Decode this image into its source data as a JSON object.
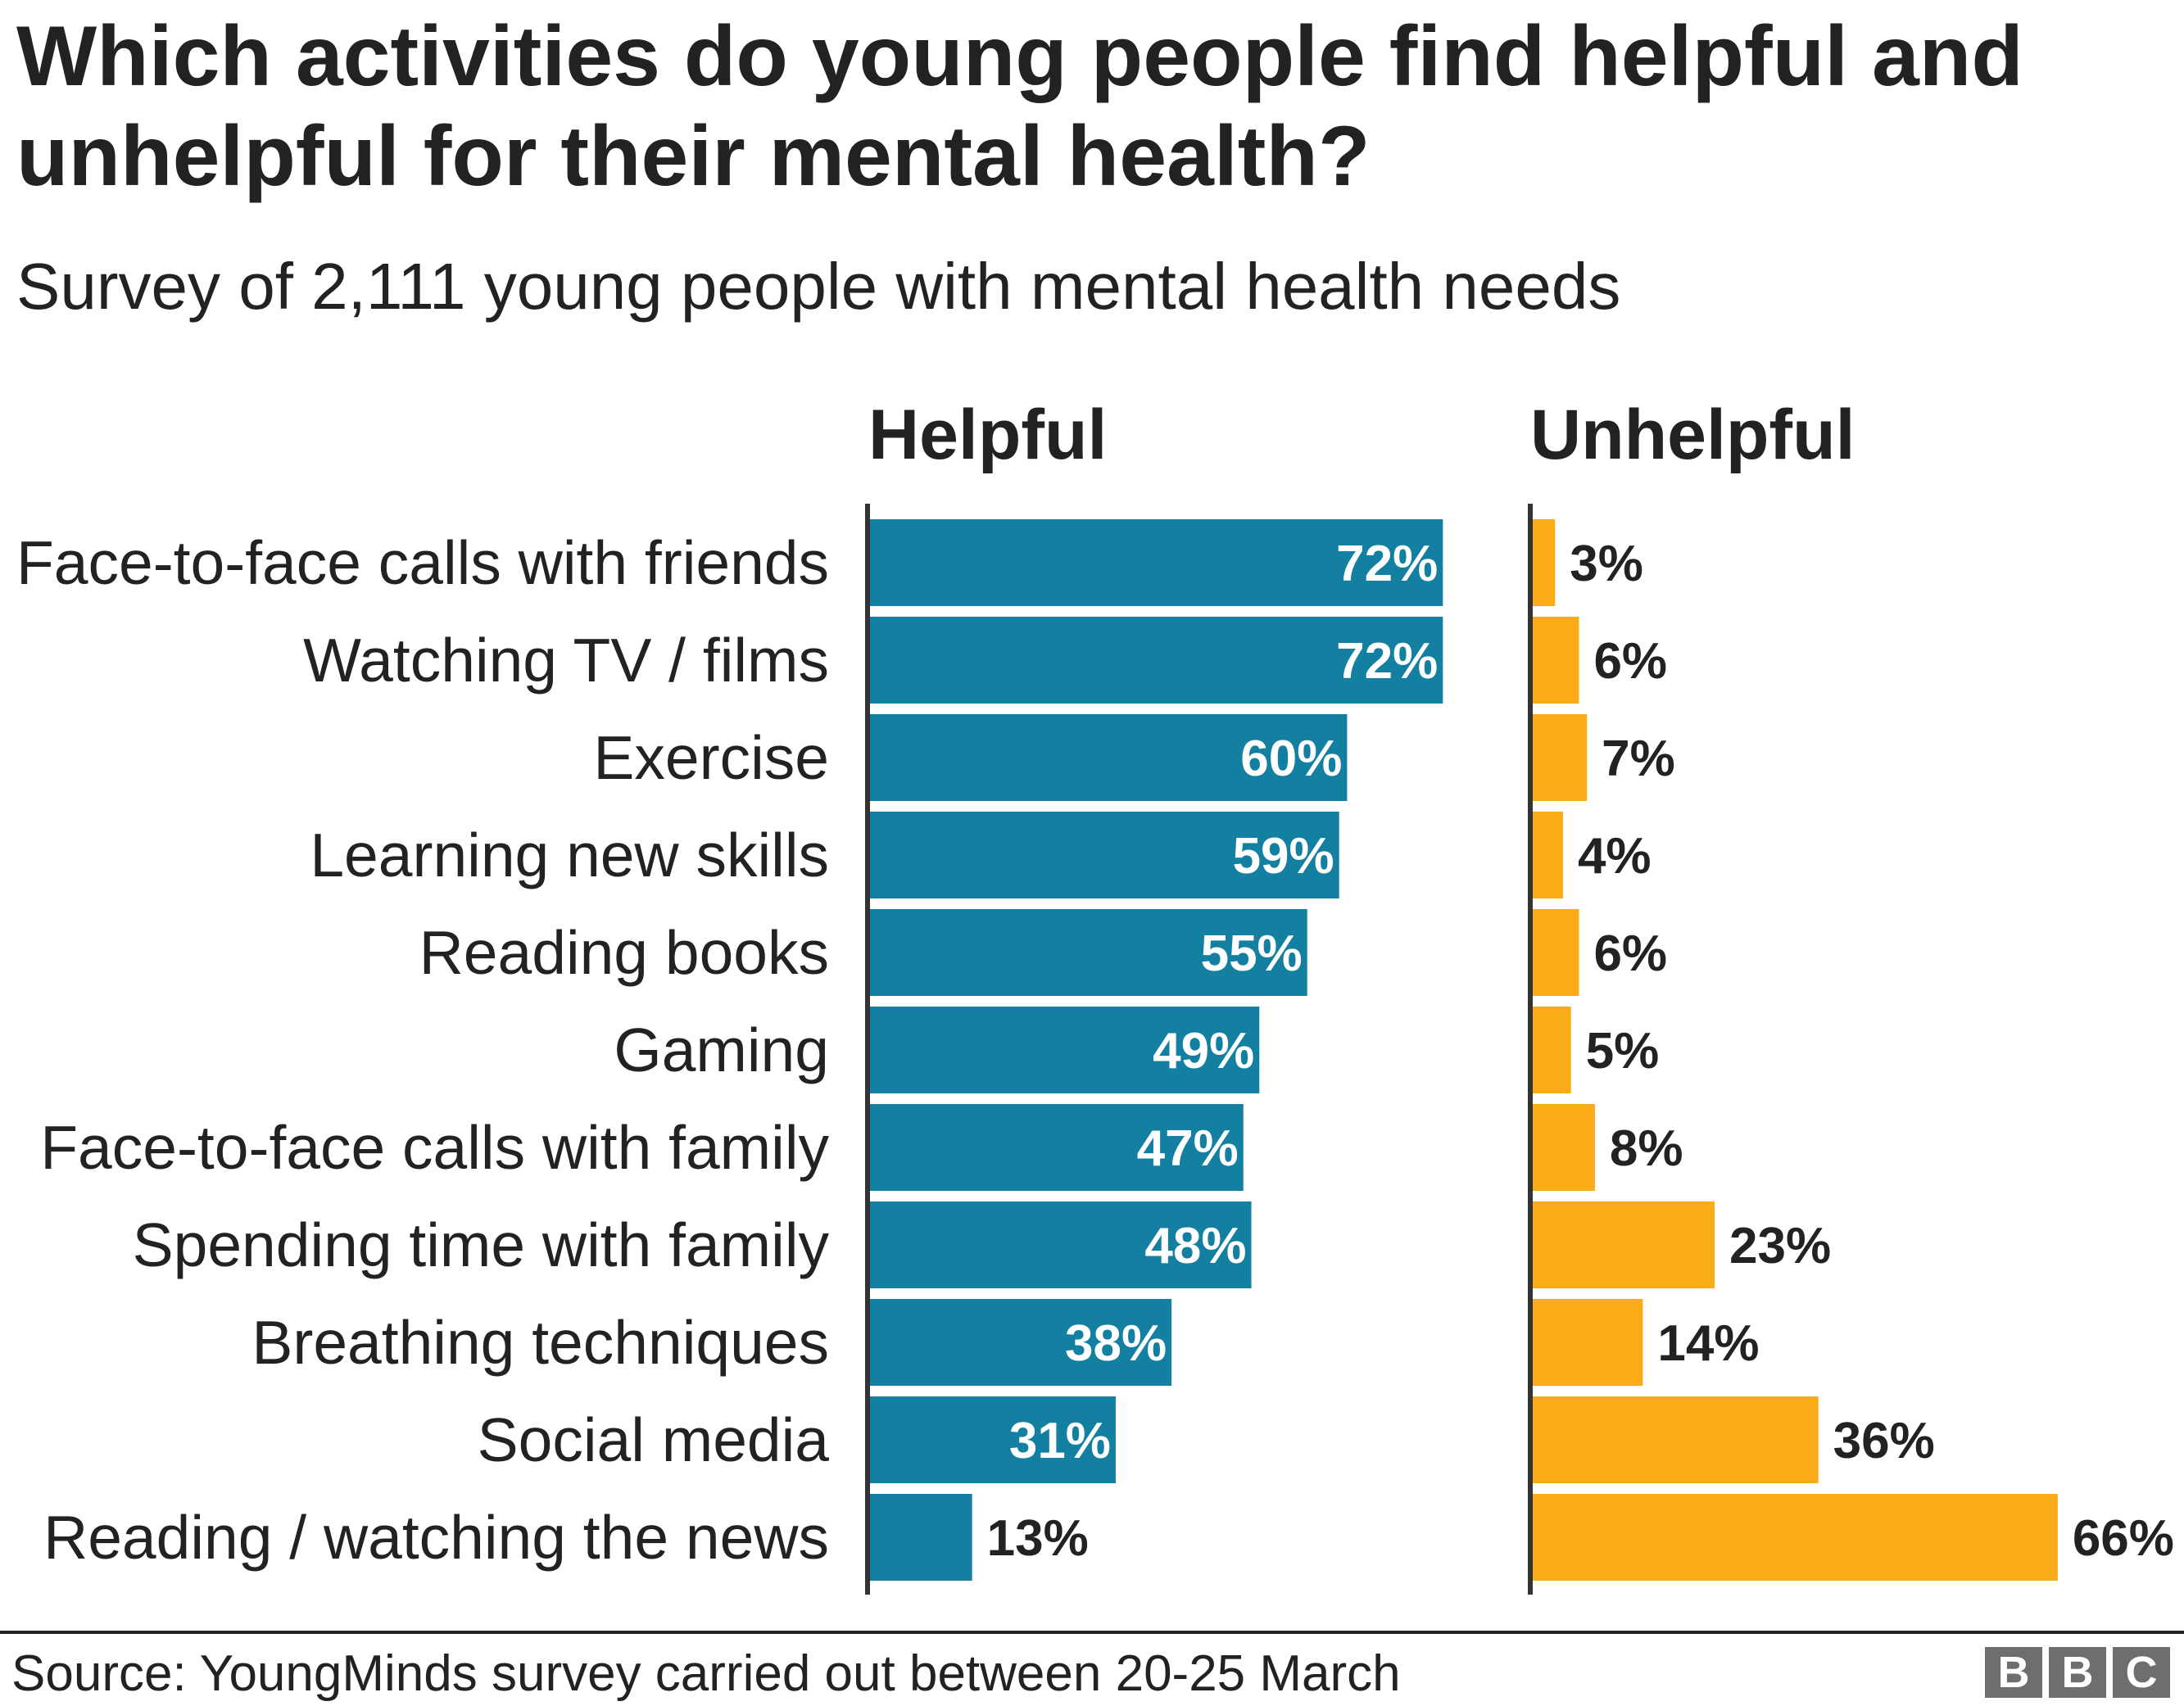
{
  "chart_data": [
    {
      "type": "bar",
      "orientation": "horizontal",
      "title": "Which activities do young people find helpful and unhelpful for their mental health?",
      "subtitle": "Survey of 2,111 young people with mental health needs",
      "categories": [
        "Face-to-face calls with friends",
        "Watching TV / films",
        "Exercise",
        "Learning new skills",
        "Reading books",
        "Gaming",
        "Face-to-face calls with family",
        "Spending time with family",
        "Breathing techniques",
        "Social media",
        "Reading / watching the news"
      ],
      "series": [
        {
          "name": "Helpful",
          "color": "#1380A1",
          "values": [
            72,
            72,
            60,
            59,
            55,
            49,
            47,
            48,
            38,
            31,
            13
          ]
        },
        {
          "name": "Unhelpful",
          "color": "#FAAB18",
          "values": [
            3,
            6,
            7,
            4,
            6,
            5,
            8,
            23,
            14,
            36,
            66
          ]
        }
      ],
      "value_suffix": "%",
      "grid": false,
      "legend": "none"
    }
  ],
  "source": "Source: YoungMinds survey carried out between 20-25 March",
  "logo": "BBC"
}
